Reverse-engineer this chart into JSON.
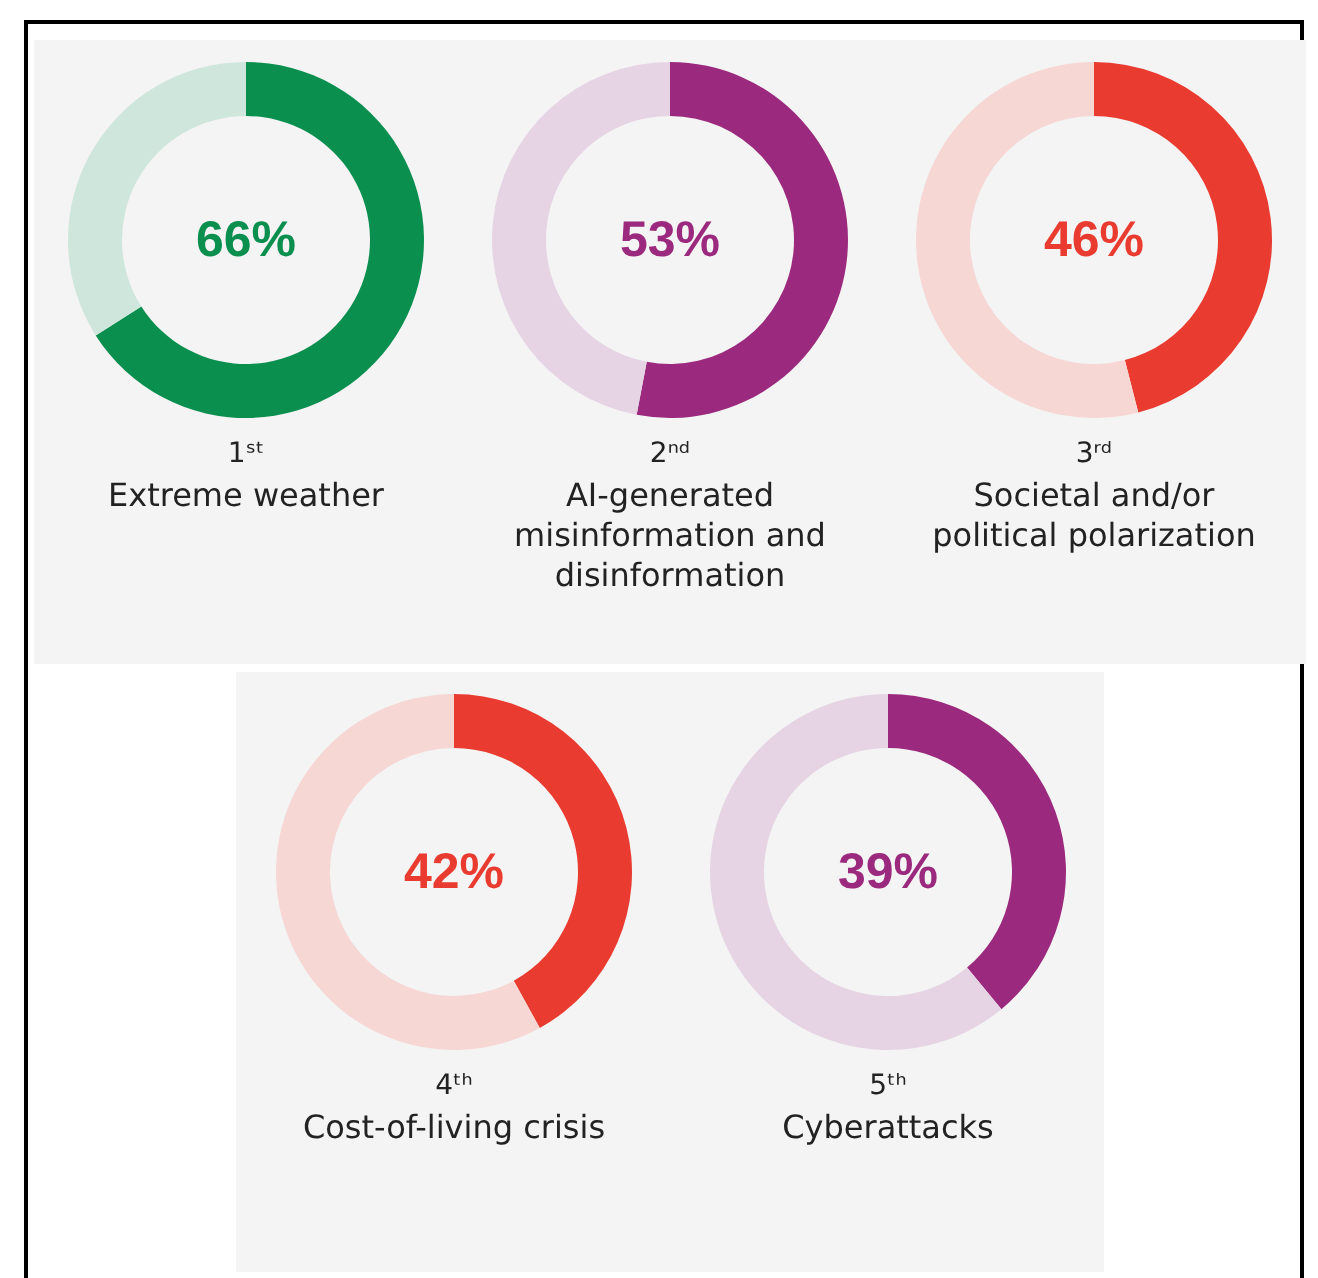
{
  "chart_data": [
    {
      "type": "donut",
      "title": "1ˢᵗ",
      "subtitle": "Extreme weather",
      "categories": [
        null,
        null
      ],
      "values": [
        66,
        34
      ],
      "colors": [
        "#0b8f4f",
        "#cfe6dc"
      ],
      "annotations": [
        "66%"
      ]
    },
    {
      "type": "donut",
      "title": "2ⁿᵈ",
      "subtitle": "AI-generated misinformation and disinformation",
      "categories": [
        null,
        null
      ],
      "values": [
        53,
        47
      ],
      "colors": [
        "#9b2a7e",
        "#e6d4e5"
      ],
      "annotations": [
        "53%"
      ]
    },
    {
      "type": "donut",
      "title": "3ʳᵈ",
      "subtitle": "Societal and/or political polarization",
      "categories": [
        null,
        null
      ],
      "values": [
        46,
        54
      ],
      "colors": [
        "#e93b30",
        "#f6d7d4"
      ],
      "annotations": [
        "46%"
      ]
    },
    {
      "type": "donut",
      "title": "4ᵗʰ",
      "subtitle": "Cost-of-living crisis",
      "categories": [
        null,
        null
      ],
      "values": [
        42,
        58
      ],
      "colors": [
        "#e93b30",
        "#f6d7d4"
      ],
      "annotations": [
        "42%"
      ]
    },
    {
      "type": "donut",
      "title": "5ᵗʰ",
      "subtitle": "Cyberattacks",
      "categories": [
        null,
        null
      ],
      "values": [
        39,
        61
      ],
      "colors": [
        "#9b2a7e",
        "#e6d4e5"
      ],
      "annotations": [
        "39%"
      ]
    }
  ]
}
